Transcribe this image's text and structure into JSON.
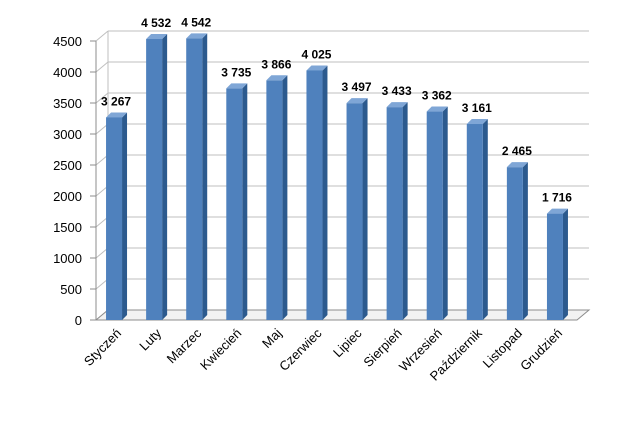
{
  "chart_data": {
    "type": "bar",
    "categories": [
      "Styczeń",
      "Luty",
      "Marzec",
      "Kwiecień",
      "Maj",
      "Czerwiec",
      "Lipiec",
      "Sierpień",
      "Wrzesień",
      "Październik",
      "Listopad",
      "Grudzień"
    ],
    "values": [
      3267,
      4532,
      4542,
      3735,
      3866,
      4025,
      3497,
      3433,
      3362,
      3161,
      2465,
      1716
    ],
    "value_labels": [
      "3 267",
      "4 532",
      "4 542",
      "3 735",
      "3 866",
      "4 025",
      "3 497",
      "3 433",
      "3 362",
      "3 161",
      "2 465",
      "1 716"
    ],
    "title": "",
    "xlabel": "",
    "ylabel": "",
    "ylim": [
      0,
      4500
    ],
    "yticks": [
      0,
      500,
      1000,
      1500,
      2000,
      2500,
      3000,
      3500,
      4000,
      4500
    ],
    "grid": true,
    "legend": "none",
    "colors": {
      "bar_front": "#4F81BD",
      "bar_side": "#2C5A8E",
      "bar_top": "#7FA6D6",
      "grid": "#BFBFBF",
      "floor": "#8C8C8C"
    }
  }
}
